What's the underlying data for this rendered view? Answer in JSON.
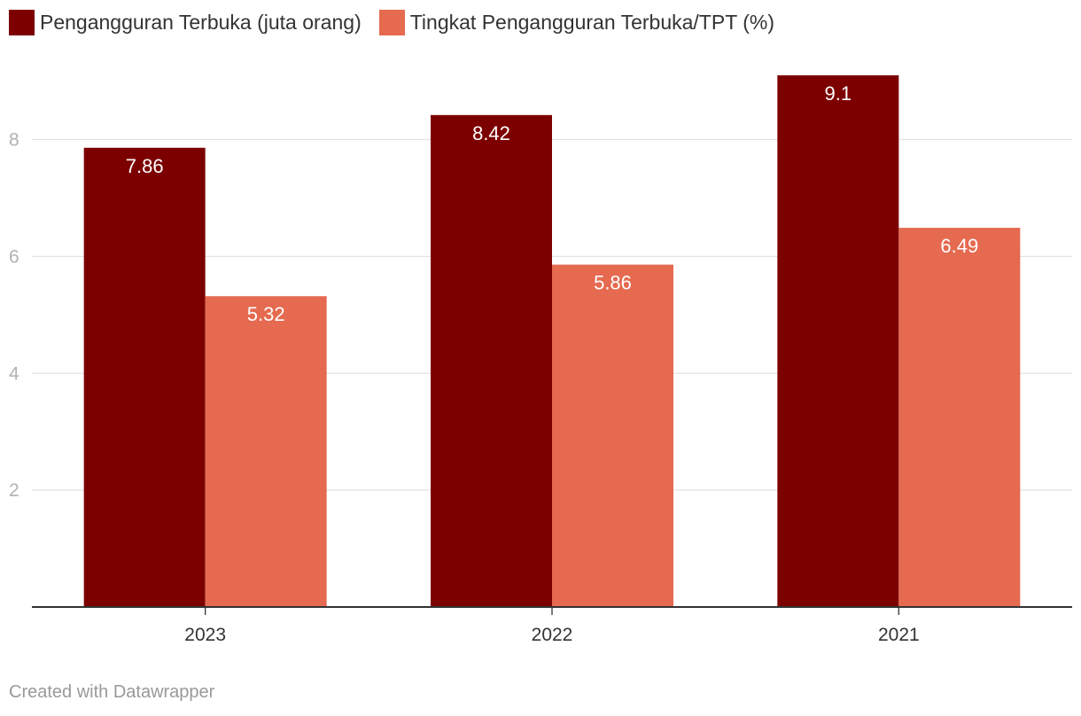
{
  "chart_data": {
    "type": "bar",
    "categories": [
      "2023",
      "2022",
      "2021"
    ],
    "series": [
      {
        "name": "Pengangguran Terbuka (juta orang)",
        "values": [
          7.86,
          8.42,
          9.1
        ],
        "color": "#7d0000",
        "labels": [
          "7.86",
          "8.42",
          "9.1"
        ]
      },
      {
        "name": "Tingkat Pengangguran Terbuka/TPT (%)",
        "values": [
          5.32,
          5.86,
          6.49
        ],
        "color": "#e56a50",
        "labels": [
          "5.32",
          "5.86",
          "6.49"
        ]
      }
    ],
    "yticks": [
      2,
      4,
      6,
      8
    ],
    "ylim": [
      0,
      9.1
    ],
    "grid": true,
    "legend": "top-left"
  },
  "footer": {
    "credit": "Created with Datawrapper"
  }
}
